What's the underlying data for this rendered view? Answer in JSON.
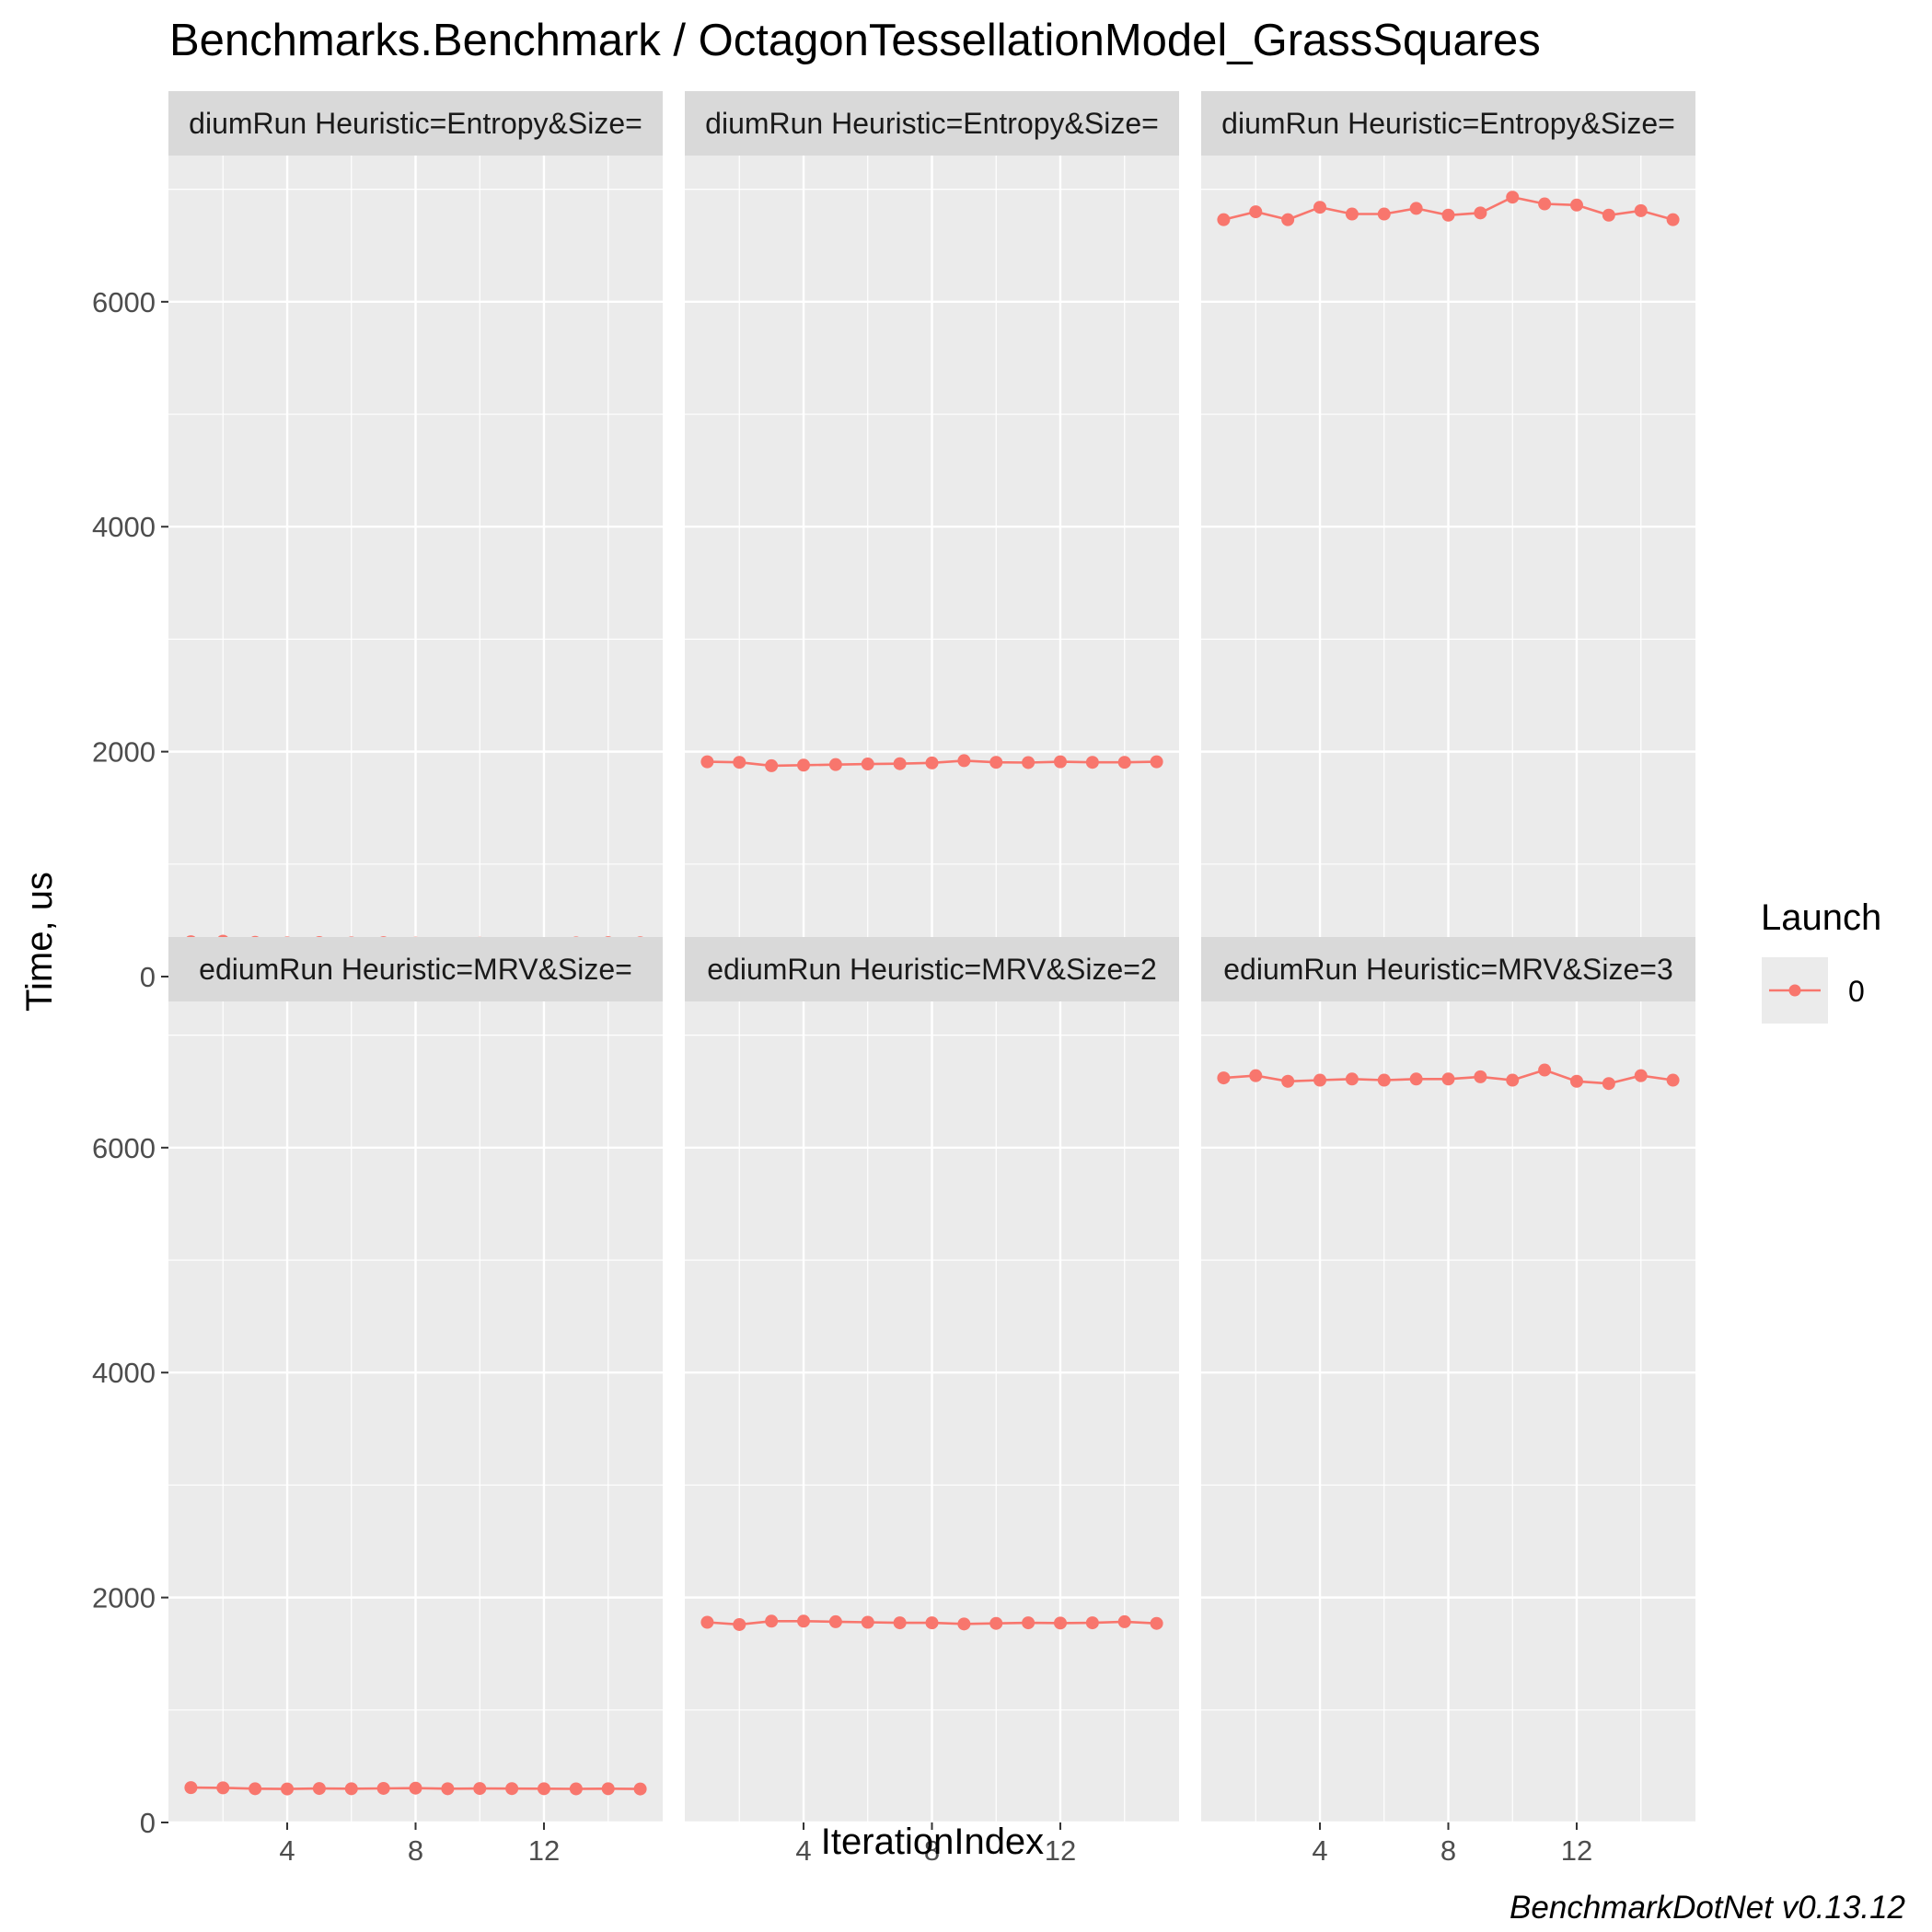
{
  "chart_data": {
    "type": "line",
    "title": "Benchmarks.Benchmark / OctagonTessellationModel_GrassSquares",
    "xlabel": "IterationIndex",
    "ylabel": "Time, us",
    "caption": "BenchmarkDotNet v0.13.12",
    "xlim": [
      0.3,
      15.7
    ],
    "ylim": [
      0,
      7300
    ],
    "x_ticks": [
      4,
      8,
      12
    ],
    "x_tick_labels": [
      "4",
      "8",
      "12"
    ],
    "y_ticks": [
      0,
      2000,
      4000,
      6000
    ],
    "y_tick_labels": [
      "0",
      "2000",
      "4000",
      "6000"
    ],
    "grid": true,
    "legend": {
      "title": "Launch",
      "position": "right",
      "entries": [
        "0"
      ]
    },
    "series_color": "#F8766D",
    "x": [
      1,
      2,
      3,
      4,
      5,
      6,
      7,
      8,
      9,
      10,
      11,
      12,
      13,
      14,
      15
    ],
    "facets": [
      {
        "strip": "diumRun Heuristic=Entropy&Size=",
        "values": [
          310,
          315,
          305,
          300,
          303,
          300,
          302,
          298,
          295,
          297,
          290,
          295,
          300,
          302,
          301
        ]
      },
      {
        "strip": "diumRun Heuristic=Entropy&Size=",
        "values": [
          1910,
          1905,
          1875,
          1880,
          1885,
          1890,
          1893,
          1900,
          1920,
          1905,
          1903,
          1910,
          1905,
          1905,
          1910
        ]
      },
      {
        "strip": "diumRun Heuristic=Entropy&Size=",
        "values": [
          6730,
          6800,
          6730,
          6840,
          6780,
          6780,
          6830,
          6770,
          6790,
          6930,
          6870,
          6860,
          6770,
          6810,
          6730
        ]
      },
      {
        "strip": "ediumRun Heuristic=MRV&Size=",
        "values": [
          310,
          308,
          300,
          298,
          302,
          300,
          303,
          305,
          300,
          302,
          301,
          300,
          299,
          300,
          298
        ]
      },
      {
        "strip": "ediumRun Heuristic=MRV&Size=2",
        "values": [
          1780,
          1760,
          1790,
          1790,
          1785,
          1780,
          1775,
          1775,
          1765,
          1770,
          1775,
          1773,
          1775,
          1785,
          1770
        ]
      },
      {
        "strip": "ediumRun Heuristic=MRV&Size=3",
        "values": [
          6620,
          6640,
          6590,
          6600,
          6610,
          6600,
          6610,
          6610,
          6630,
          6600,
          6690,
          6590,
          6570,
          6640,
          6600
        ]
      }
    ]
  }
}
